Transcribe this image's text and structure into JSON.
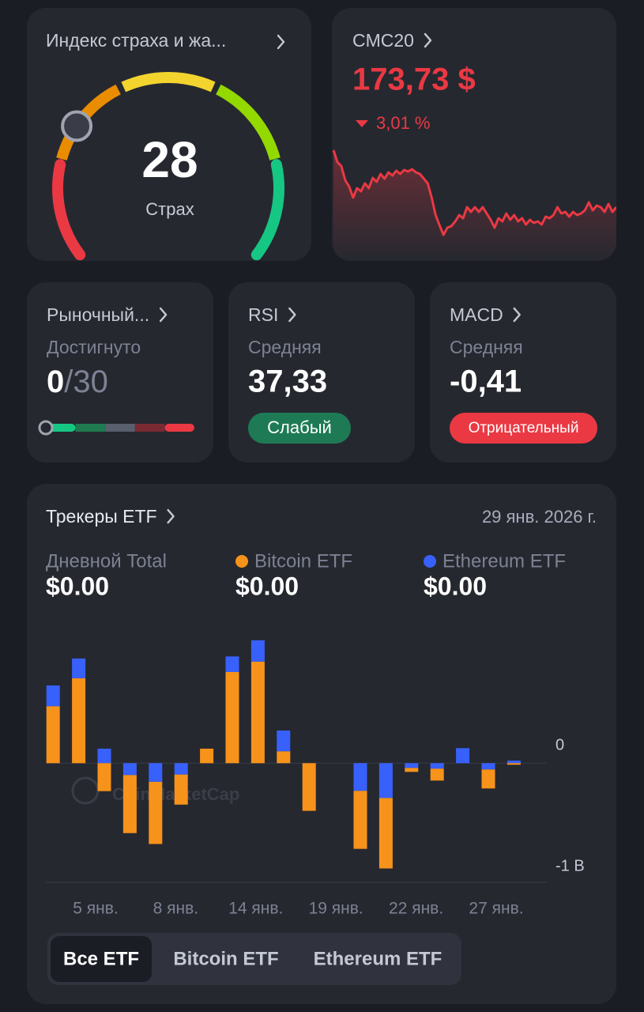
{
  "fear_greed": {
    "title": "Индекс страха и жа...",
    "value": 28,
    "scale": [
      0,
      100
    ],
    "label": "Страх"
  },
  "cmc20": {
    "title": "CMC20",
    "price": "173,73 $",
    "change": "3,01 %",
    "sparkline": [
      110,
      95,
      90,
      72,
      64,
      50,
      62,
      58,
      68,
      62,
      75,
      70,
      80,
      74,
      82,
      78,
      84,
      80,
      85,
      83,
      86,
      82,
      80,
      74,
      68,
      50,
      28,
      15,
      3,
      12,
      14,
      20,
      28,
      24,
      38,
      32,
      38,
      32,
      38,
      30,
      22,
      12,
      24,
      20,
      30,
      22,
      28,
      20,
      24,
      16,
      22,
      18,
      20,
      16,
      26,
      24,
      28,
      38,
      30,
      32,
      26,
      32,
      28,
      30,
      34,
      44,
      34,
      40,
      38,
      32,
      42,
      32,
      38
    ]
  },
  "indicators": [
    {
      "title": "Рыночный...",
      "subtitle": "Достигнуто",
      "achieved": 0,
      "separator": "/",
      "total": 30
    },
    {
      "title": "RSI",
      "subtitle": "Средняя",
      "value": "37,33",
      "badge": "Слабый"
    },
    {
      "title": "MACD",
      "subtitle": "Средняя",
      "value": "-0,41",
      "badge": "Отрицательный"
    }
  ],
  "etf": {
    "title": "Трекеры ETF",
    "date": "29 янв. 2026 г.",
    "total_label": "Дневной Total",
    "stat_values": [
      "$0.00",
      "$0.00",
      "$0.00"
    ],
    "watermark": "CoinMarketCap",
    "tabs": [
      "Все ETF",
      "Bitcoin ETF",
      "Ethereum ETF"
    ],
    "selected_tab": 0
  },
  "chart_data": {
    "type": "bar",
    "stacked": true,
    "categories": [
      null,
      null,
      null,
      null,
      null,
      null,
      null,
      null,
      null,
      null,
      null,
      null,
      null,
      null,
      null,
      null,
      null,
      null,
      null
    ],
    "xticks": [
      "5 янв.",
      "8 янв.",
      "14 янв.",
      "19 янв.",
      "22 янв.",
      "27 янв."
    ],
    "series": [
      {
        "name": "Bitcoin ETF",
        "color": "#f7931a",
        "values": [
          550000000,
          820000000,
          -270000000,
          -560000000,
          -600000000,
          -290000000,
          140000000,
          880000000,
          980000000,
          115000000,
          -460000000,
          null,
          -560000000,
          -680000000,
          -38000000,
          -115000000,
          0,
          -183000000,
          -15000000
        ]
      },
      {
        "name": "Ethereum ETF",
        "color": "#3861fb",
        "values": [
          200000000,
          190000000,
          140000000,
          -115000000,
          -180000000,
          -110000000,
          0,
          150000000,
          206000000,
          200000000,
          0,
          null,
          -267000000,
          -336000000,
          -46000000,
          -53000000,
          145000000,
          -61000000,
          25000000
        ]
      }
    ],
    "ylim": [
      -1150000000,
      1200000000
    ],
    "yticks": [
      0,
      {
        "value": -1000000000,
        "label": "-1 B"
      }
    ],
    "grid": false
  }
}
